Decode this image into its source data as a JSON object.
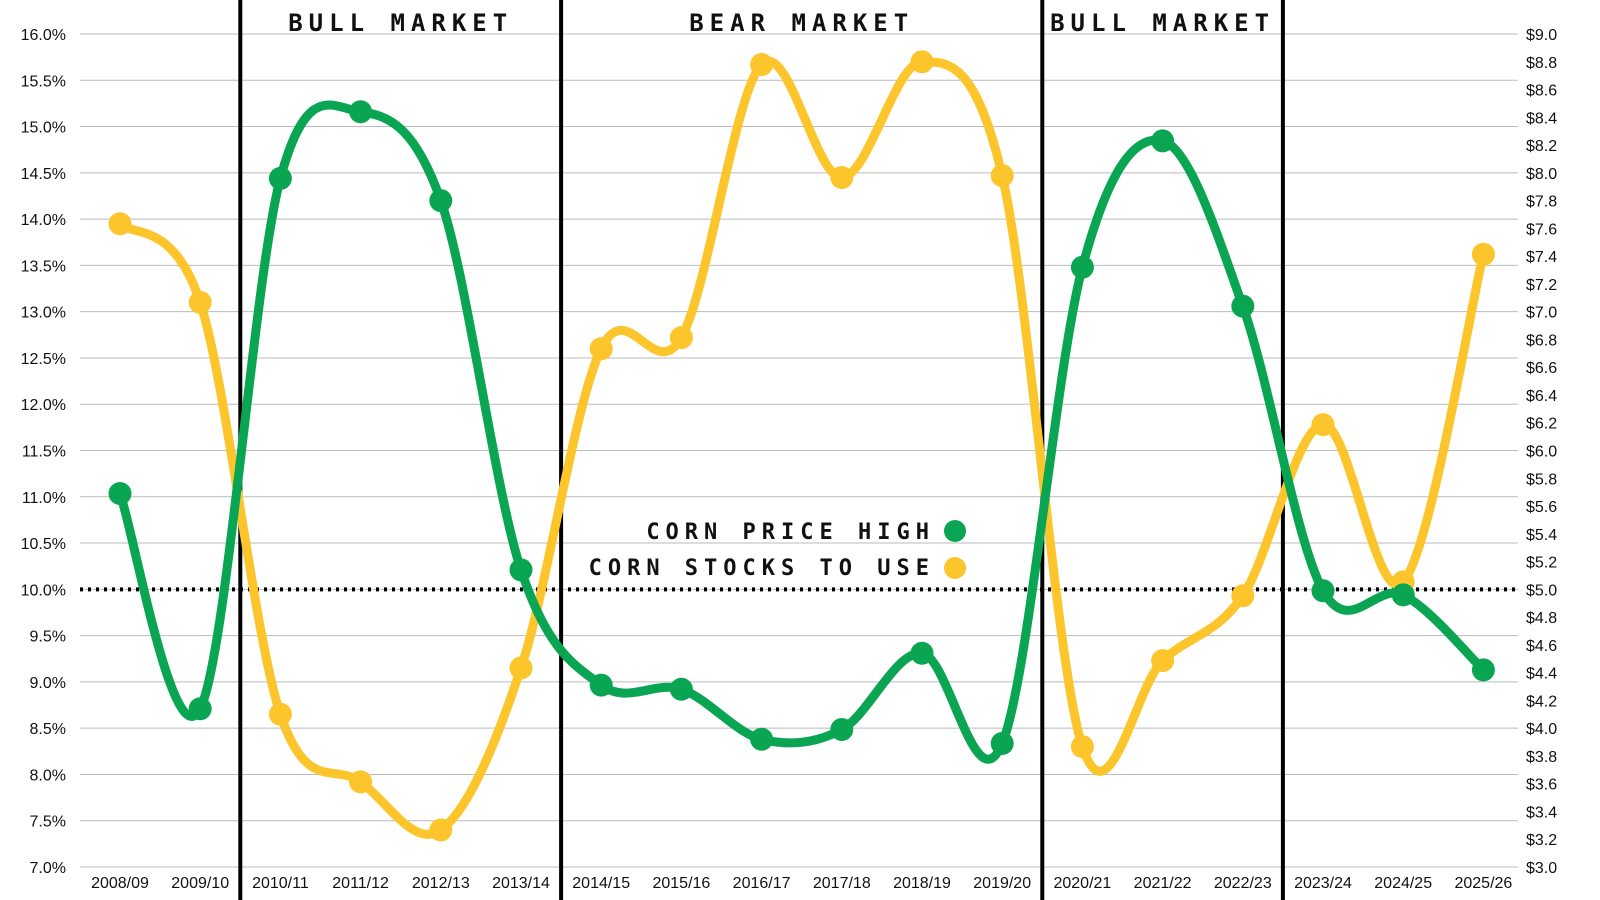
{
  "chart_data": {
    "type": "line",
    "categories": [
      "2008/09",
      "2009/10",
      "2010/11",
      "2011/12",
      "2012/13",
      "2013/14",
      "2014/15",
      "2015/16",
      "2016/17",
      "2017/18",
      "2018/19",
      "2019/20",
      "2020/21",
      "2021/22",
      "2022/23",
      "2023/24",
      "2024/25",
      "2025/26"
    ],
    "left_axis": {
      "ylim": [
        7.0,
        16.0
      ],
      "ticks": [
        "7.0%",
        "7.5%",
        "8.0%",
        "8.5%",
        "9.0%",
        "9.5%",
        "10.0%",
        "10.5%",
        "11.0%",
        "11.5%",
        "12.0%",
        "12.5%",
        "13.0%",
        "13.5%",
        "14.0%",
        "14.5%",
        "15.0%",
        "15.5%",
        "16.0%"
      ]
    },
    "right_axis": {
      "ylim": [
        3.0,
        9.0
      ],
      "ticks": [
        "$3.0",
        "$3.2",
        "$3.4",
        "$3.6",
        "$3.8",
        "$4.0",
        "$4.2",
        "$4.4",
        "$4.6",
        "$4.8",
        "$5.0",
        "$5.2",
        "$5.4",
        "$5.6",
        "$5.8",
        "$6.0",
        "$6.2",
        "$6.4",
        "$6.6",
        "$6.8",
        "$7.0",
        "$7.2",
        "$7.4",
        "$7.6",
        "$7.8",
        "$8.0",
        "$8.2",
        "$8.4",
        "$8.6",
        "$8.8",
        "$9.0"
      ]
    },
    "series": [
      {
        "name": "CORN PRICE HIGH",
        "axis": "right",
        "color": "#0aa552",
        "values": [
          5.69,
          4.14,
          7.96,
          8.44,
          7.8,
          5.14,
          4.31,
          4.28,
          3.92,
          3.99,
          4.54,
          3.89,
          7.32,
          8.23,
          7.04,
          4.99,
          4.96,
          4.42
        ]
      },
      {
        "name": "CORN STOCKS TO USE",
        "axis": "left",
        "color": "#fcc52c",
        "values": [
          13.95,
          13.1,
          8.65,
          7.92,
          7.4,
          9.15,
          12.6,
          12.72,
          15.67,
          14.45,
          15.7,
          14.47,
          8.3,
          9.23,
          9.93,
          11.78,
          10.08,
          13.62
        ]
      }
    ],
    "reference_line": {
      "axis": "left",
      "value": 10.0,
      "style": "dotted"
    },
    "periods": [
      {
        "label": "BULL MARKET",
        "start": 2,
        "end": 5
      },
      {
        "label": "BEAR MARKET",
        "start": 6,
        "end": 11
      },
      {
        "label": "BULL MARKET",
        "start": 12,
        "end": 14
      }
    ],
    "dividers_between": [
      1,
      5,
      11,
      14
    ],
    "legend_placement": "center",
    "grid": true,
    "colors": {
      "grid": "#bbbbbb",
      "divider": "#000000",
      "text": "#111111"
    }
  }
}
